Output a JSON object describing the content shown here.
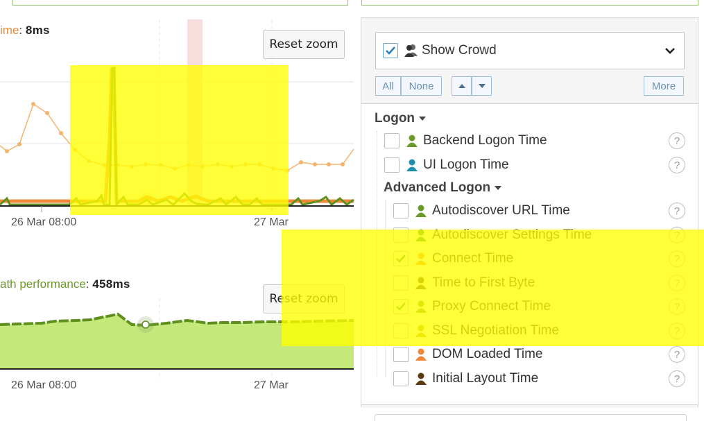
{
  "charts": {
    "top": {
      "metric_label": "Time",
      "metric_label_visible": "ime",
      "metric_value": "8ms",
      "reset_label": "Reset zoom",
      "x_ticks": [
        "26 Mar 08:00",
        "27 Mar"
      ]
    },
    "bottom": {
      "metric_label_visible": "ath performance",
      "metric_value": "458ms",
      "reset_label": "Reset zoom",
      "x_ticks": [
        "26 Mar 08:00",
        "27 Mar"
      ]
    }
  },
  "panel": {
    "crowd": {
      "label": "Show Crowd",
      "checked": true
    },
    "buttons": {
      "all": "All",
      "none": "None",
      "more": "More"
    },
    "groups": [
      {
        "title": "Logon",
        "items": [
          {
            "label": "Backend Logon Time",
            "checked": false,
            "color": "#6a9a28"
          },
          {
            "label": "UI Logon Time",
            "checked": false,
            "color": "#1f8fb0"
          }
        ]
      },
      {
        "title": "Advanced Logon",
        "items": [
          {
            "label": "Autodiscover URL Time",
            "checked": false,
            "color": "#6a9a28"
          },
          {
            "label": "Autodiscover Settings Time",
            "checked": false,
            "color": "#2a8a3a"
          },
          {
            "label": "Connect Time",
            "checked": true,
            "color": "#f0883a"
          },
          {
            "label": "Time to First Byte",
            "checked": false,
            "color": "#5a3a10"
          },
          {
            "label": "Proxy Connect Time",
            "checked": true,
            "color": "#6a9a28"
          },
          {
            "label": "SSL Negotiation Time",
            "checked": false,
            "color": "#c8901a"
          },
          {
            "label": "DOM Loaded Time",
            "checked": false,
            "color": "#f0883a"
          },
          {
            "label": "Initial Layout Time",
            "checked": false,
            "color": "#5a3a10"
          }
        ]
      }
    ],
    "help_glyph": "?"
  },
  "colors": {
    "orange": "#f0883a",
    "green": "#6a9a28",
    "light_green_fill": "#c5e87a",
    "highlight": "#ffff00",
    "accent_blue": "#6aa6d6"
  }
}
